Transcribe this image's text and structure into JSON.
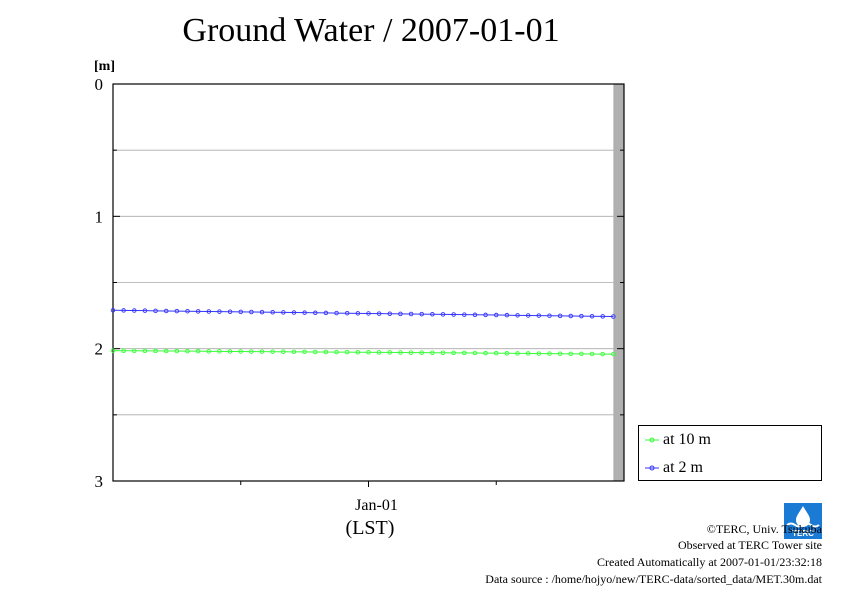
{
  "title": "Ground Water / 2007-01-01",
  "legend": {
    "items": [
      {
        "label": "at 10 m",
        "color": "#33ff33"
      },
      {
        "label": "at 2 m",
        "color": "#3333ff"
      }
    ]
  },
  "x_unit_label": "(LST)",
  "credits": {
    "copyright": "©TERC, Univ. Tsukuba",
    "observed": "Observed at TERC Tower site",
    "created": "Created Automatically at 2007-01-01/23:32:18",
    "source": "Data source : /home/hojyo/new/TERC-data/sorted_data/MET.30m.dat"
  },
  "logo": {
    "text": "TERC",
    "color": "#1a7ad4"
  },
  "chart_data": {
    "type": "line",
    "title": "Ground Water / 2007-01-01",
    "ylabel": "[m]",
    "xlabel": "(LST)",
    "ylim": [
      0,
      3
    ],
    "y_inverted": true,
    "yticks": [
      0,
      1,
      2,
      3
    ],
    "yticks_labels": [
      "0",
      "1",
      "2",
      "3"
    ],
    "y_minor_gridlines": [
      0.5,
      1,
      1.5,
      2,
      2.5
    ],
    "x_tick_label": "Jan-01",
    "x_range_hours": [
      0,
      24
    ],
    "x_major_tick_hours": [
      12
    ],
    "x_minor_tick_hours": [
      6,
      18
    ],
    "shaded_after_hours": 23.5,
    "grid": true,
    "legend_position": "right-bottom",
    "series": [
      {
        "name": "at 10 m",
        "color": "#33ff33",
        "x_hours": [
          0,
          0.5,
          1,
          1.5,
          2,
          2.5,
          3,
          3.5,
          4,
          4.5,
          5,
          5.5,
          6,
          6.5,
          7,
          7.5,
          8,
          8.5,
          9,
          9.5,
          10,
          10.5,
          11,
          11.5,
          12,
          12.5,
          13,
          13.5,
          14,
          14.5,
          15,
          15.5,
          16,
          16.5,
          17,
          17.5,
          18,
          18.5,
          19,
          19.5,
          20,
          20.5,
          21,
          21.5,
          22,
          22.5,
          23,
          23.5
        ],
        "values": [
          2.015,
          2.016,
          2.016,
          2.017,
          2.017,
          2.018,
          2.018,
          2.019,
          2.019,
          2.02,
          2.02,
          2.021,
          2.021,
          2.022,
          2.022,
          2.023,
          2.023,
          2.024,
          2.024,
          2.025,
          2.025,
          2.026,
          2.026,
          2.027,
          2.027,
          2.028,
          2.028,
          2.029,
          2.03,
          2.03,
          2.031,
          2.031,
          2.032,
          2.032,
          2.033,
          2.034,
          2.034,
          2.035,
          2.036,
          2.036,
          2.037,
          2.037,
          2.038,
          2.039,
          2.039,
          2.04,
          2.041,
          2.041
        ]
      },
      {
        "name": "at 2 m",
        "color": "#3333ff",
        "x_hours": [
          0,
          0.5,
          1,
          1.5,
          2,
          2.5,
          3,
          3.5,
          4,
          4.5,
          5,
          5.5,
          6,
          6.5,
          7,
          7.5,
          8,
          8.5,
          9,
          9.5,
          10,
          10.5,
          11,
          11.5,
          12,
          12.5,
          13,
          13.5,
          14,
          14.5,
          15,
          15.5,
          16,
          16.5,
          17,
          17.5,
          18,
          18.5,
          19,
          19.5,
          20,
          20.5,
          21,
          21.5,
          22,
          22.5,
          23,
          23.5
        ],
        "values": [
          1.71,
          1.711,
          1.712,
          1.713,
          1.714,
          1.715,
          1.716,
          1.717,
          1.718,
          1.719,
          1.72,
          1.721,
          1.722,
          1.723,
          1.724,
          1.725,
          1.726,
          1.727,
          1.728,
          1.729,
          1.73,
          1.731,
          1.732,
          1.733,
          1.734,
          1.735,
          1.736,
          1.737,
          1.738,
          1.739,
          1.74,
          1.741,
          1.742,
          1.743,
          1.744,
          1.745,
          1.746,
          1.747,
          1.748,
          1.749,
          1.75,
          1.751,
          1.752,
          1.753,
          1.754,
          1.755,
          1.756,
          1.757
        ]
      }
    ]
  }
}
